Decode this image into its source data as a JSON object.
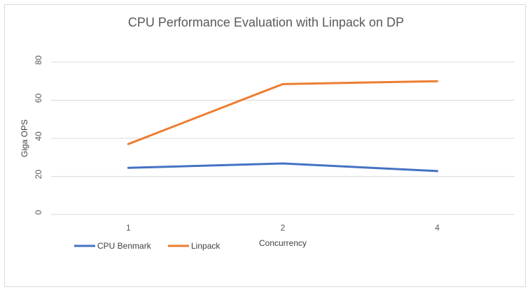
{
  "chart_data": {
    "type": "line",
    "title": "CPU Performance Evaluation with Linpack on DP",
    "xlabel": "Concurrency",
    "ylabel": "Giga OPS",
    "categories": [
      "1",
      "2",
      "4"
    ],
    "ylim": [
      0,
      80
    ],
    "yticks": [
      0,
      20,
      40,
      60,
      80
    ],
    "grid": true,
    "legend_position": "bottom-left",
    "series": [
      {
        "name": "CPU Benmark",
        "color": "#4472c4",
        "values": [
          24.5,
          26.8,
          22.8
        ]
      },
      {
        "name": "Linpack",
        "color": "#ed7d31",
        "values": [
          37,
          68.5,
          70
        ]
      }
    ]
  }
}
